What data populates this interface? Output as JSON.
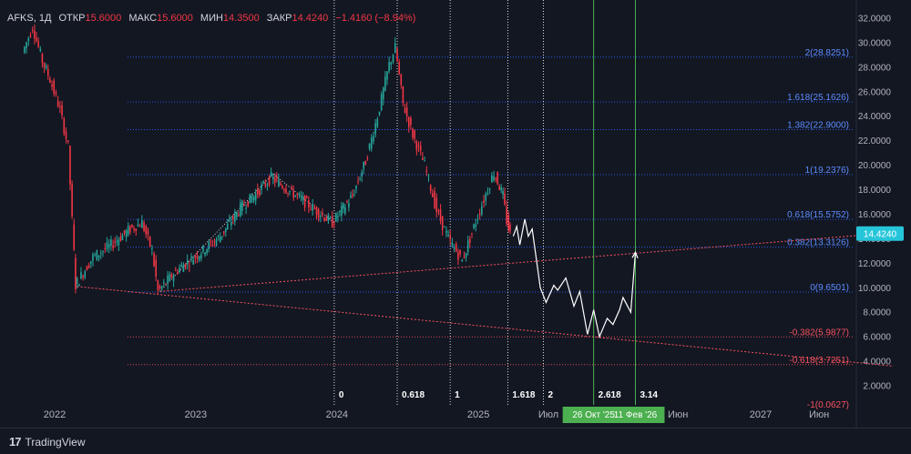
{
  "header": {
    "symbol": "AFKS, 1Д",
    "open_label": "ОТКР",
    "open": "15.6000",
    "high_label": "МАКС",
    "high": "15.6000",
    "low_label": "МИН",
    "low": "14.3500",
    "close_label": "ЗАКР",
    "close": "14.4240",
    "change": "−1.4160 (−8.94%)"
  },
  "brand": "TradingView",
  "colors": {
    "background": "#131722",
    "up": "#26a69a",
    "down": "#f23645",
    "fib_upper": "#2962ff",
    "fib_lower": "#f7525f",
    "vertical_green": "#4caf50",
    "price_tag": "#26c6da"
  },
  "chart_data": {
    "type": "candlestick",
    "title": "",
    "ylim": [
      0,
      32.8
    ],
    "y_ticks": [
      "32.0000",
      "30.0000",
      "28.0000",
      "26.0000",
      "24.0000",
      "22.0000",
      "20.0000",
      "18.0000",
      "16.0000",
      "14.0000",
      "12.0000",
      "10.0000",
      "8.0000",
      "6.0000",
      "4.0000",
      "2.0000"
    ],
    "y_tick_values": [
      32,
      30,
      28,
      26,
      24,
      22,
      20,
      18,
      16,
      14,
      12,
      10,
      8,
      6,
      4,
      2
    ],
    "x_ticks": [
      "2022",
      "2023",
      "2024",
      "2025",
      "Июл",
      "Июн",
      "2027",
      "Июн"
    ],
    "x_tick_dates": [
      "2022-01-01",
      "2023-01-01",
      "2024-01-01",
      "2025-01-01",
      "2025-07-01",
      "2026-06-01",
      "2027-01-01",
      "2027-06-01"
    ],
    "last_price": "14.4240",
    "last_price_value": 14.424,
    "price_path": [
      [
        "2021-10-15",
        29.2
      ],
      [
        "2021-11-10",
        31.3
      ],
      [
        "2021-12-05",
        28.5
      ],
      [
        "2021-12-25",
        27.0
      ],
      [
        "2022-01-20",
        24.5
      ],
      [
        "2022-02-10",
        21.5
      ],
      [
        "2022-02-20",
        15.5
      ],
      [
        "2022-02-28",
        10.2
      ],
      [
        "2022-04-15",
        12.5
      ],
      [
        "2022-06-01",
        13.5
      ],
      [
        "2022-07-20",
        14.8
      ],
      [
        "2022-08-20",
        15.3
      ],
      [
        "2022-09-15",
        13.0
      ],
      [
        "2022-09-30",
        9.7
      ],
      [
        "2022-11-20",
        11.5
      ],
      [
        "2023-01-15",
        12.8
      ],
      [
        "2023-03-10",
        14.2
      ],
      [
        "2023-05-01",
        16.5
      ],
      [
        "2023-06-15",
        17.8
      ],
      [
        "2023-07-20",
        19.0
      ],
      [
        "2023-09-01",
        18.0
      ],
      [
        "2023-10-15",
        17.0
      ],
      [
        "2023-12-25",
        15.3
      ],
      [
        "2024-02-15",
        17.5
      ],
      [
        "2024-03-20",
        20.3
      ],
      [
        "2024-04-20",
        24.0
      ],
      [
        "2024-05-20",
        28.2
      ],
      [
        "2024-06-05",
        29.6
      ],
      [
        "2024-06-25",
        25.0
      ],
      [
        "2024-07-20",
        22.5
      ],
      [
        "2024-08-20",
        20.0
      ],
      [
        "2024-09-20",
        16.3
      ],
      [
        "2024-10-20",
        14.0
      ],
      [
        "2024-11-25",
        12.2
      ],
      [
        "2024-12-20",
        14.5
      ],
      [
        "2025-01-20",
        17.2
      ],
      [
        "2025-02-15",
        19.4
      ],
      [
        "2025-03-10",
        17.5
      ],
      [
        "2025-03-20",
        15.5
      ],
      [
        "2025-03-28",
        14.4
      ]
    ],
    "projection_path": [
      [
        "2025-04-01",
        14.2
      ],
      [
        "2025-04-10",
        15.0
      ],
      [
        "2025-04-18",
        13.5
      ],
      [
        "2025-05-01",
        15.6
      ],
      [
        "2025-05-10",
        14.2
      ],
      [
        "2025-05-20",
        14.8
      ],
      [
        "2025-06-10",
        10.0
      ],
      [
        "2025-06-25",
        8.8
      ],
      [
        "2025-07-15",
        10.2
      ],
      [
        "2025-07-25",
        9.8
      ],
      [
        "2025-08-15",
        10.8
      ],
      [
        "2025-09-05",
        8.5
      ],
      [
        "2025-09-20",
        9.7
      ],
      [
        "2025-10-10",
        6.2
      ],
      [
        "2025-10-26",
        8.2
      ],
      [
        "2025-11-10",
        6.0
      ],
      [
        "2025-11-30",
        7.5
      ],
      [
        "2025-12-15",
        7.0
      ],
      [
        "2026-01-01",
        8.2
      ],
      [
        "2026-01-10",
        9.2
      ],
      [
        "2026-01-30",
        8.0
      ],
      [
        "2026-02-11",
        12.9
      ]
    ],
    "wave_dotted_path": [
      [
        "2022-09-30",
        9.7
      ],
      [
        "2023-07-20",
        19.3
      ],
      [
        "2023-12-25",
        15.3
      ]
    ],
    "fib_levels": [
      {
        "label": "2(28.8251)",
        "value": 28.8251
      },
      {
        "label": "1.618(25.1626)",
        "value": 25.1626
      },
      {
        "label": "1.382(22.9000)",
        "value": 22.9
      },
      {
        "label": "1(19.2376)",
        "value": 19.2376
      },
      {
        "label": "0.618(15.5752)",
        "value": 15.5752
      },
      {
        "label": "0.382(13.3126)",
        "value": 13.3126
      },
      {
        "label": "0(9.6501)",
        "value": 9.6501
      },
      {
        "label": "-0.382(5.9877)",
        "value": 5.9877
      },
      {
        "label": "-0.618(3.7251)",
        "value": 3.7251
      },
      {
        "label": "-1(0.0627)",
        "value": 0.0627
      }
    ],
    "trendlines": [
      {
        "from": [
          "2022-02-28",
          10.1
        ],
        "to": [
          "2027-12-10",
          3.6
        ]
      },
      {
        "from": [
          "2022-09-30",
          9.7
        ],
        "to": [
          "2027-12-10",
          14.5
        ]
      }
    ],
    "time_fib": [
      {
        "label": "0",
        "date": "2023-12-25"
      },
      {
        "label": "0.618",
        "date": "2024-06-05"
      },
      {
        "label": "1",
        "date": "2024-10-20"
      },
      {
        "label": "1.618",
        "date": "2025-03-18"
      },
      {
        "label": "2",
        "date": "2025-06-18"
      }
    ],
    "time_markers": [
      {
        "label": "2.618",
        "date": "2025-10-26",
        "date_label": "26 Окт '25"
      },
      {
        "label": "3.14",
        "date": "2026-02-11",
        "date_label": "11 Фев '26"
      }
    ]
  }
}
